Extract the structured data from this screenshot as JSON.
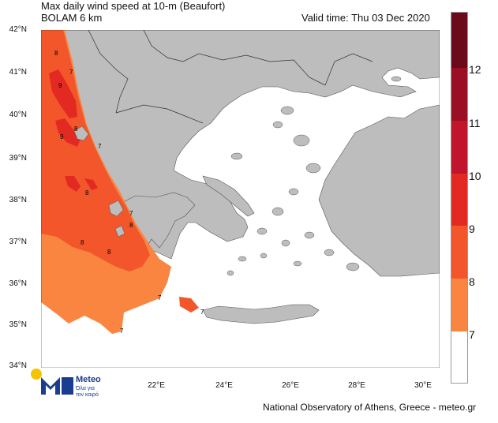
{
  "header": {
    "title_line1": "Max daily wind speed at 10-m (Beaufort)",
    "title_line2": "BOLAM 6 km",
    "valid_time": "Valid time: Thu 03 Dec 2020"
  },
  "axes": {
    "lat_labels": [
      "42°N",
      "41°N",
      "40°N",
      "39°N",
      "38°N",
      "37°N",
      "36°N",
      "35°N",
      "34°N"
    ],
    "lon_labels": [
      "22°E",
      "24°E",
      "26°E",
      "28°E",
      "30°E"
    ]
  },
  "colorbar": {
    "labels": [
      "12",
      "11",
      "10",
      "9",
      "8",
      "7"
    ],
    "colors": [
      "#6b0a1a",
      "#9b0f24",
      "#c0152a",
      "#e22a22",
      "#f2562a",
      "#f98540",
      "#ffffff"
    ]
  },
  "contour_labels": [
    "8",
    "7",
    "9",
    "8",
    "9",
    "7",
    "8",
    "7",
    "8",
    "8",
    "8",
    "7",
    "7",
    "7"
  ],
  "footer": {
    "credit": "National Observatory of Athens, Greece - meteo.gr",
    "logo_name": "Meteo",
    "logo_slogan_1": "Όλα για",
    "logo_slogan_2": "τον καιρό"
  },
  "colors": {
    "land": "#bdbdbd",
    "sea": "#ffffff",
    "border": "#333333"
  }
}
